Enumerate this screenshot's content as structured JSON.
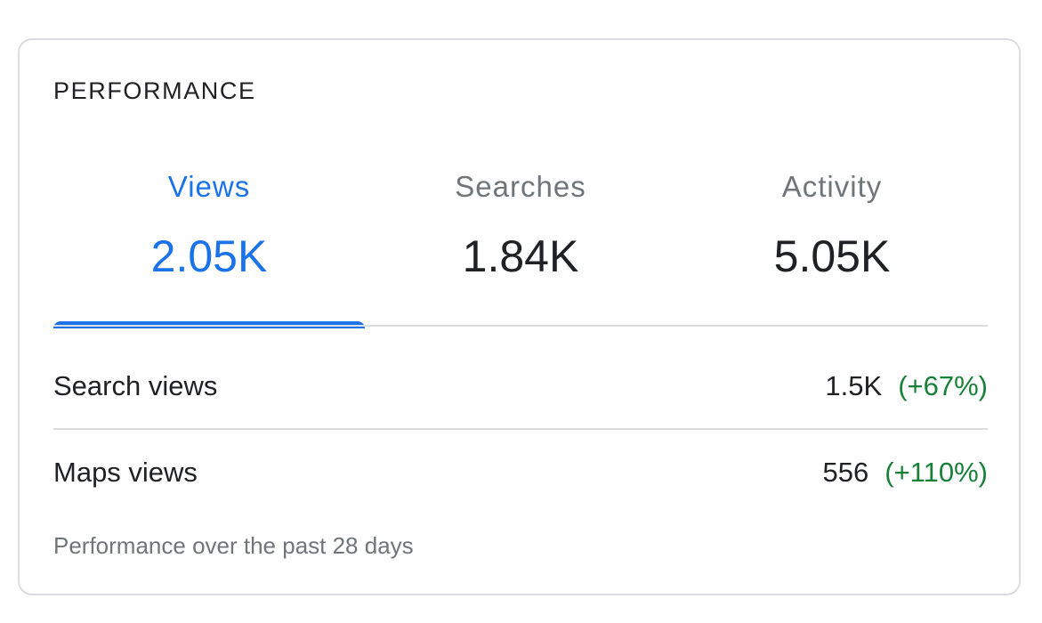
{
  "card": {
    "title": "PERFORMANCE"
  },
  "tabs": [
    {
      "label": "Views",
      "value": "2.05K",
      "active": true
    },
    {
      "label": "Searches",
      "value": "1.84K",
      "active": false
    },
    {
      "label": "Activity",
      "value": "5.05K",
      "active": false
    }
  ],
  "rows": [
    {
      "label": "Search views",
      "value": "1.5K",
      "change": "(+67%)"
    },
    {
      "label": "Maps views",
      "value": "556",
      "change": "(+110%)"
    }
  ],
  "footnote": "Performance over the past 28 days",
  "colors": {
    "accent": "#1a73e8",
    "positive": "#188038",
    "muted": "#70757a",
    "text": "#202124",
    "divider": "#dadce0"
  }
}
